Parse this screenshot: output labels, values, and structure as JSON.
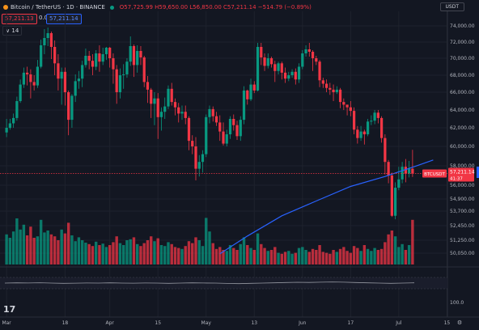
{
  "header": {
    "symbol": "Bitcoin / TetherUS · 1D · BINANCE",
    "ohlc": "O57,725.99 H59,650.00 L56,850.00 C57,211.14 −514.79 (−0.89%)",
    "bid": "57,211.13",
    "spread": "0.01",
    "ask": "57,211.14",
    "indicator_count": "14",
    "currency": "USDT"
  },
  "colors": {
    "up": "#089981",
    "down": "#f23645",
    "ma": "#2962ff",
    "background": "#131722"
  },
  "price_tag": {
    "symbol": "BTCUSDT",
    "price": "57,211.14",
    "countdown": "41:37"
  },
  "chart_data": {
    "type": "candlestick",
    "y_scale": "log",
    "x_labels": [
      "Mar",
      "18",
      "Apr",
      "15",
      "May",
      "13",
      "Jun",
      "17",
      "Jul",
      "15"
    ],
    "x_label_bar_index": [
      0,
      17,
      30,
      44,
      58,
      72,
      86,
      100,
      114,
      128
    ],
    "y_ticks": [
      "74,000.00",
      "72,000.00",
      "70,000.00",
      "68,000.00",
      "66,000.00",
      "64,000.00",
      "62,000.00",
      "60,000.00",
      "58,000.00",
      "56,000.00",
      "54,900.00",
      "53,700.00",
      "52,450.00",
      "51,250.00",
      "50,050.00"
    ],
    "y_tick_values": [
      74000,
      72000,
      70000,
      68000,
      66000,
      64000,
      62000,
      60000,
      58000,
      56000,
      54900,
      53700,
      52450,
      51250,
      50050
    ],
    "current_price": 57211.14,
    "ma_series": [
      {
        "name": "",
        "x_bar_index": [
          62,
          70,
          80,
          90,
          100,
          110,
          120,
          124
        ],
        "values": [
          50000,
          51600,
          53300,
          54700,
          55900,
          56900,
          58100,
          58600
        ]
      }
    ],
    "candles": [
      {
        "o": 61500,
        "c": 62000,
        "h": 63000,
        "l": 61000
      },
      {
        "o": 62000,
        "c": 62500,
        "h": 63000,
        "l": 61800
      },
      {
        "o": 62500,
        "c": 63100,
        "h": 63600,
        "l": 62000
      },
      {
        "o": 63100,
        "c": 65000,
        "h": 65500,
        "l": 62800
      },
      {
        "o": 65000,
        "c": 66900,
        "h": 67500,
        "l": 64800
      },
      {
        "o": 66900,
        "c": 68300,
        "h": 68900,
        "l": 66500
      },
      {
        "o": 68300,
        "c": 68100,
        "h": 69000,
        "l": 66800
      },
      {
        "o": 68100,
        "c": 67200,
        "h": 68700,
        "l": 65300
      },
      {
        "o": 67200,
        "c": 66800,
        "h": 68000,
        "l": 66200
      },
      {
        "o": 66800,
        "c": 69000,
        "h": 69800,
        "l": 66500
      },
      {
        "o": 69000,
        "c": 71600,
        "h": 72300,
        "l": 68800
      },
      {
        "o": 71600,
        "c": 72500,
        "h": 73600,
        "l": 70500
      },
      {
        "o": 72500,
        "c": 73100,
        "h": 73800,
        "l": 71500
      },
      {
        "o": 73100,
        "c": 71400,
        "h": 73300,
        "l": 69900
      },
      {
        "o": 71400,
        "c": 69400,
        "h": 72200,
        "l": 68000
      },
      {
        "o": 69400,
        "c": 67600,
        "h": 70500,
        "l": 66200
      },
      {
        "o": 67600,
        "c": 68400,
        "h": 68900,
        "l": 64600
      },
      {
        "o": 68400,
        "c": 66000,
        "h": 68900,
        "l": 64500
      },
      {
        "o": 66000,
        "c": 62900,
        "h": 66200,
        "l": 61200
      },
      {
        "o": 62900,
        "c": 65600,
        "h": 65800,
        "l": 62000
      },
      {
        "o": 65600,
        "c": 67300,
        "h": 68100,
        "l": 64900
      },
      {
        "o": 67300,
        "c": 67600,
        "h": 68500,
        "l": 66400
      },
      {
        "o": 67600,
        "c": 69200,
        "h": 69700,
        "l": 66600
      },
      {
        "o": 69200,
        "c": 70300,
        "h": 71200,
        "l": 68900
      },
      {
        "o": 70300,
        "c": 69700,
        "h": 70900,
        "l": 68700
      },
      {
        "o": 69700,
        "c": 69000,
        "h": 70500,
        "l": 68000
      },
      {
        "o": 69000,
        "c": 70600,
        "h": 71000,
        "l": 68600
      },
      {
        "o": 70600,
        "c": 69600,
        "h": 71600,
        "l": 68400
      },
      {
        "o": 69600,
        "c": 70500,
        "h": 71300,
        "l": 69200
      },
      {
        "o": 70500,
        "c": 71300,
        "h": 71400,
        "l": 69800
      },
      {
        "o": 71300,
        "c": 70000,
        "h": 71400,
        "l": 68900
      },
      {
        "o": 70000,
        "c": 68700,
        "h": 70600,
        "l": 67000
      },
      {
        "o": 68700,
        "c": 66000,
        "h": 69200,
        "l": 64700
      },
      {
        "o": 66000,
        "c": 68000,
        "h": 68800,
        "l": 65300
      },
      {
        "o": 68000,
        "c": 68100,
        "h": 69300,
        "l": 66400
      },
      {
        "o": 68100,
        "c": 69600,
        "h": 70000,
        "l": 67700
      },
      {
        "o": 69600,
        "c": 71500,
        "h": 72700,
        "l": 69100
      },
      {
        "o": 71500,
        "c": 69200,
        "h": 71700,
        "l": 67800
      },
      {
        "o": 69200,
        "c": 70900,
        "h": 71600,
        "l": 68300
      },
      {
        "o": 70900,
        "c": 70100,
        "h": 71500,
        "l": 69200
      },
      {
        "o": 70100,
        "c": 67200,
        "h": 70300,
        "l": 66600
      },
      {
        "o": 67200,
        "c": 66300,
        "h": 67900,
        "l": 64800
      },
      {
        "o": 66300,
        "c": 64700,
        "h": 66500,
        "l": 63100
      },
      {
        "o": 64700,
        "c": 65300,
        "h": 66000,
        "l": 62300
      },
      {
        "o": 65300,
        "c": 63200,
        "h": 65900,
        "l": 60800
      },
      {
        "o": 63200,
        "c": 63800,
        "h": 64300,
        "l": 61700
      },
      {
        "o": 63800,
        "c": 64400,
        "h": 65400,
        "l": 63000
      },
      {
        "o": 64400,
        "c": 66400,
        "h": 66800,
        "l": 64100
      },
      {
        "o": 66400,
        "c": 64900,
        "h": 67100,
        "l": 64500
      },
      {
        "o": 64900,
        "c": 64300,
        "h": 65300,
        "l": 63400
      },
      {
        "o": 64300,
        "c": 63600,
        "h": 64800,
        "l": 62600
      },
      {
        "o": 63600,
        "c": 63800,
        "h": 64500,
        "l": 62900
      },
      {
        "o": 63800,
        "c": 63100,
        "h": 64500,
        "l": 62400
      },
      {
        "o": 63100,
        "c": 60600,
        "h": 63300,
        "l": 59600
      },
      {
        "o": 60600,
        "c": 60000,
        "h": 61200,
        "l": 59200
      },
      {
        "o": 60000,
        "c": 57700,
        "h": 61000,
        "l": 56500
      },
      {
        "o": 57700,
        "c": 58400,
        "h": 59100,
        "l": 56900
      },
      {
        "o": 58400,
        "c": 59200,
        "h": 59600,
        "l": 57300
      },
      {
        "o": 59200,
        "c": 63200,
        "h": 63500,
        "l": 58900
      },
      {
        "o": 63200,
        "c": 64100,
        "h": 64500,
        "l": 62500
      },
      {
        "o": 64100,
        "c": 63300,
        "h": 64400,
        "l": 62700
      },
      {
        "o": 63300,
        "c": 62600,
        "h": 63800,
        "l": 62200
      },
      {
        "o": 62600,
        "c": 61600,
        "h": 63400,
        "l": 60600
      },
      {
        "o": 61600,
        "c": 60300,
        "h": 62600,
        "l": 60100
      },
      {
        "o": 60300,
        "c": 61300,
        "h": 61800,
        "l": 60000
      },
      {
        "o": 61300,
        "c": 63000,
        "h": 63300,
        "l": 60800
      },
      {
        "o": 63000,
        "c": 62300,
        "h": 63500,
        "l": 61700
      },
      {
        "o": 62300,
        "c": 61100,
        "h": 62800,
        "l": 60700
      },
      {
        "o": 61100,
        "c": 62900,
        "h": 63300,
        "l": 60600
      },
      {
        "o": 62900,
        "c": 66200,
        "h": 66700,
        "l": 62400
      },
      {
        "o": 66200,
        "c": 65200,
        "h": 66300,
        "l": 64600
      },
      {
        "o": 65200,
        "c": 66900,
        "h": 67600,
        "l": 65000
      },
      {
        "o": 66900,
        "c": 66200,
        "h": 67300,
        "l": 65900
      },
      {
        "o": 66200,
        "c": 71400,
        "h": 71900,
        "l": 66100
      },
      {
        "o": 71400,
        "c": 70100,
        "h": 71900,
        "l": 69200
      },
      {
        "o": 70100,
        "c": 69100,
        "h": 70600,
        "l": 68500
      },
      {
        "o": 69100,
        "c": 70000,
        "h": 70600,
        "l": 68800
      },
      {
        "o": 70000,
        "c": 69300,
        "h": 70200,
        "l": 68900
      },
      {
        "o": 69300,
        "c": 68500,
        "h": 69700,
        "l": 67200
      },
      {
        "o": 68500,
        "c": 69400,
        "h": 69600,
        "l": 68100
      },
      {
        "o": 69400,
        "c": 68300,
        "h": 69600,
        "l": 67500
      },
      {
        "o": 68300,
        "c": 67600,
        "h": 68900,
        "l": 67100
      },
      {
        "o": 67600,
        "c": 68000,
        "h": 68400,
        "l": 67300
      },
      {
        "o": 68000,
        "c": 68400,
        "h": 68700,
        "l": 67700
      },
      {
        "o": 68400,
        "c": 67500,
        "h": 68800,
        "l": 66900
      },
      {
        "o": 67500,
        "c": 69000,
        "h": 69400,
        "l": 67100
      },
      {
        "o": 69000,
        "c": 70600,
        "h": 71000,
        "l": 68700
      },
      {
        "o": 70600,
        "c": 71100,
        "h": 71600,
        "l": 70200
      },
      {
        "o": 71100,
        "c": 70800,
        "h": 71900,
        "l": 70200
      },
      {
        "o": 70800,
        "c": 70000,
        "h": 71000,
        "l": 68500
      },
      {
        "o": 70000,
        "c": 69600,
        "h": 70300,
        "l": 69200
      },
      {
        "o": 69600,
        "c": 67400,
        "h": 69800,
        "l": 66600
      },
      {
        "o": 67400,
        "c": 67000,
        "h": 67700,
        "l": 66500
      },
      {
        "o": 67000,
        "c": 66500,
        "h": 67500,
        "l": 66000
      },
      {
        "o": 66500,
        "c": 66300,
        "h": 67100,
        "l": 65700
      },
      {
        "o": 66300,
        "c": 66000,
        "h": 66900,
        "l": 65000
      },
      {
        "o": 66000,
        "c": 66300,
        "h": 66700,
        "l": 65800
      },
      {
        "o": 66300,
        "c": 64900,
        "h": 66500,
        "l": 64200
      },
      {
        "o": 64900,
        "c": 64600,
        "h": 65300,
        "l": 64000
      },
      {
        "o": 64600,
        "c": 64300,
        "h": 64600,
        "l": 63400
      },
      {
        "o": 64300,
        "c": 63900,
        "h": 65000,
        "l": 63300
      },
      {
        "o": 63900,
        "c": 61800,
        "h": 64300,
        "l": 61300
      },
      {
        "o": 61800,
        "c": 60900,
        "h": 62200,
        "l": 60300
      },
      {
        "o": 60900,
        "c": 61600,
        "h": 62200,
        "l": 60600
      },
      {
        "o": 61600,
        "c": 61300,
        "h": 61800,
        "l": 60200
      },
      {
        "o": 61300,
        "c": 62700,
        "h": 63000,
        "l": 61100
      },
      {
        "o": 62700,
        "c": 62800,
        "h": 63400,
        "l": 62300
      },
      {
        "o": 62800,
        "c": 63700,
        "h": 64000,
        "l": 62400
      },
      {
        "o": 63700,
        "c": 63100,
        "h": 64000,
        "l": 62500
      },
      {
        "o": 63100,
        "c": 60900,
        "h": 63300,
        "l": 60400
      },
      {
        "o": 60900,
        "c": 58400,
        "h": 61300,
        "l": 57100
      },
      {
        "o": 58400,
        "c": 57000,
        "h": 58600,
        "l": 56200
      },
      {
        "o": 57000,
        "c": 53300,
        "h": 57300,
        "l": 53200
      },
      {
        "o": 53300,
        "c": 55800,
        "h": 56300,
        "l": 53000
      },
      {
        "o": 55800,
        "c": 56600,
        "h": 57900,
        "l": 55600
      },
      {
        "o": 56600,
        "c": 57900,
        "h": 58400,
        "l": 56200
      },
      {
        "o": 57900,
        "c": 57200,
        "h": 58700,
        "l": 56300
      },
      {
        "o": 57200,
        "c": 57700,
        "h": 58500,
        "l": 56800
      },
      {
        "o": 57700,
        "c": 57211,
        "h": 59650,
        "l": 56850
      }
    ],
    "volume": [
      0.62,
      0.55,
      0.68,
      0.95,
      0.72,
      0.82,
      0.6,
      0.78,
      0.55,
      0.58,
      0.92,
      0.66,
      0.7,
      0.62,
      0.58,
      0.5,
      0.72,
      0.64,
      0.86,
      0.6,
      0.48,
      0.56,
      0.5,
      0.45,
      0.42,
      0.38,
      0.47,
      0.4,
      0.43,
      0.36,
      0.4,
      0.46,
      0.58,
      0.44,
      0.4,
      0.5,
      0.52,
      0.56,
      0.42,
      0.38,
      0.44,
      0.5,
      0.58,
      0.48,
      0.54,
      0.4,
      0.38,
      0.46,
      0.42,
      0.36,
      0.34,
      0.32,
      0.38,
      0.48,
      0.44,
      0.56,
      0.5,
      0.38,
      0.96,
      0.68,
      0.44,
      0.32,
      0.36,
      0.3,
      0.28,
      0.4,
      0.34,
      0.3,
      0.42,
      0.56,
      0.4,
      0.34,
      0.3,
      0.64,
      0.42,
      0.34,
      0.28,
      0.3,
      0.36,
      0.24,
      0.22,
      0.26,
      0.28,
      0.22,
      0.24,
      0.34,
      0.36,
      0.3,
      0.26,
      0.32,
      0.3,
      0.4,
      0.26,
      0.24,
      0.22,
      0.3,
      0.26,
      0.32,
      0.36,
      0.28,
      0.24,
      0.38,
      0.34,
      0.28,
      0.4,
      0.32,
      0.28,
      0.34,
      0.3,
      0.32,
      0.46,
      0.62,
      0.7,
      0.58,
      0.36,
      0.42,
      0.3,
      0.4,
      0.92,
      0.72,
      0.48,
      0.44,
      0.38,
      0.34
    ],
    "oscillator": [
      0.5,
      0.52,
      0.51,
      0.53,
      0.5,
      0.48,
      0.49,
      0.51,
      0.5,
      0.52,
      0.5,
      0.49,
      0.51,
      0.5,
      0.48,
      0.5,
      0.52,
      0.51,
      0.5,
      0.47,
      0.45,
      0.48,
      0.5,
      0.52,
      0.55,
      0.57,
      0.56,
      0.58,
      0.6,
      0.58,
      0.55,
      0.52,
      0.5,
      0.48,
      0.5,
      0.52
    ]
  },
  "osc_axis": {
    "tick": "100.0"
  }
}
